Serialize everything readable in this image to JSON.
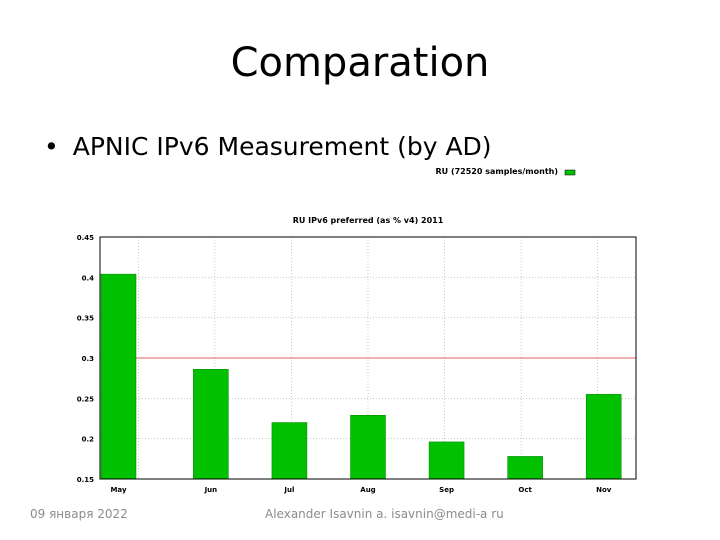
{
  "slide": {
    "title": "Comparation",
    "bullet": "APNIC IPv6 Measurement (by AD)",
    "bullet_marker": "•"
  },
  "footer": {
    "date": "09 января 2022",
    "author": "Alexander Isavnin a. isavnin@medi-a ru"
  },
  "chart_data": {
    "type": "bar",
    "title": "RU IPv6 preferred (as % v4) 2011",
    "categories": [
      "May",
      "Jun",
      "Jul",
      "Aug",
      "Sep",
      "Oct",
      "Nov"
    ],
    "series": [
      {
        "name": "RU (72520 samples/month)",
        "values": [
          0.404,
          0.286,
          0.22,
          0.229,
          0.196,
          0.178,
          0.255
        ],
        "color": "#00c000"
      }
    ],
    "ylim": [
      0.15,
      0.45
    ],
    "yticks": [
      0.15,
      0.2,
      0.25,
      0.3,
      0.35,
      0.4,
      0.45
    ],
    "ytick_labels": [
      "0.15",
      "0.2",
      "0.25",
      "0.3",
      "0.35",
      "0.4",
      "0.45"
    ],
    "reference_line": {
      "value": 0.3,
      "color": "#e06060"
    },
    "grid": true,
    "legend_position": "top-right",
    "xlabel": "",
    "ylabel": ""
  }
}
